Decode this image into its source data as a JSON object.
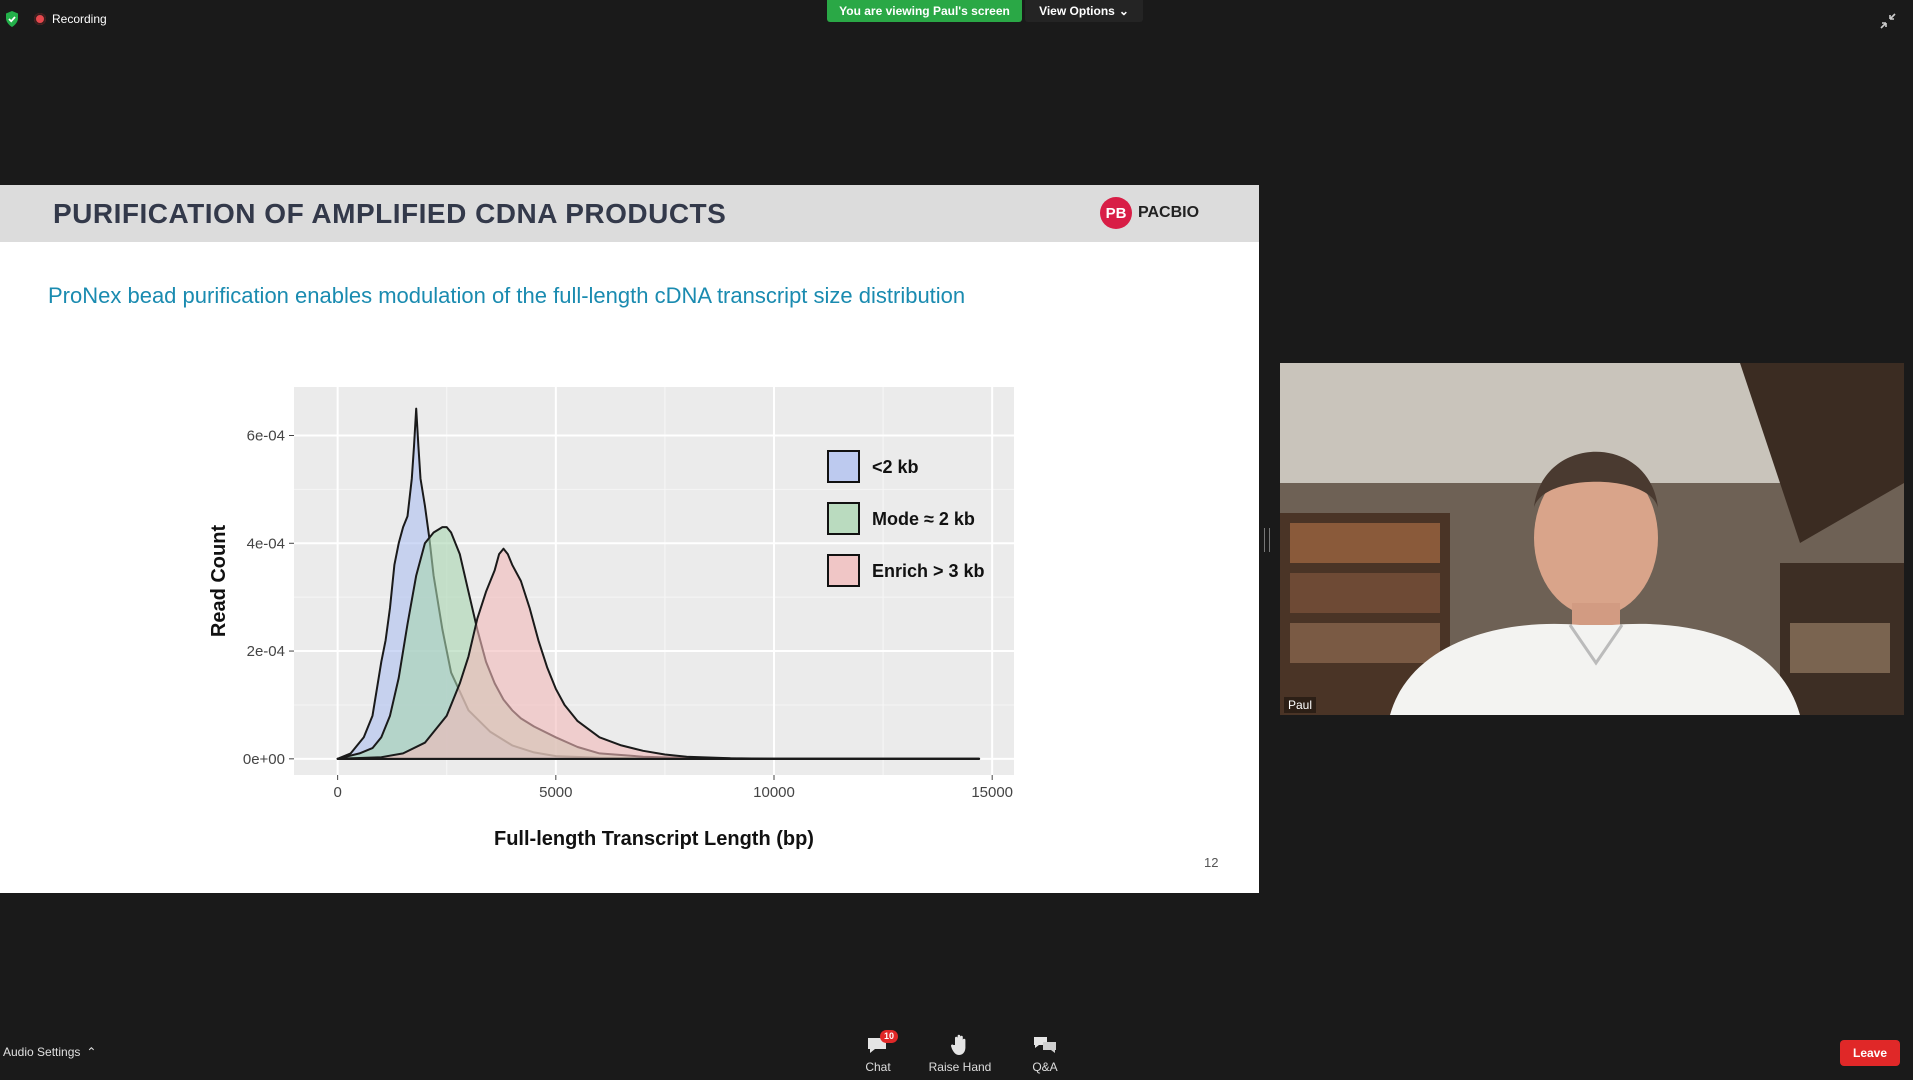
{
  "top": {
    "recording_label": "Recording",
    "viewing_label": "You are viewing Paul's screen",
    "view_options_label": "View Options"
  },
  "slide": {
    "title": "PURIFICATION OF AMPLIFIED CDNA PRODUCTS",
    "logo_text": "PACBIO",
    "logo_mark": "PB",
    "subtitle": "ProNex bead purification enables modulation of the full-length cDNA transcript size distribution",
    "page_number": "12"
  },
  "chart_data": {
    "type": "area",
    "xlabel": "Full-length Transcript Length (bp)",
    "ylabel": "Read Count",
    "xlim": [
      -1000,
      15500
    ],
    "ylim": [
      -3e-05,
      0.00069
    ],
    "x_ticks": [
      0,
      5000,
      10000,
      15000
    ],
    "x_tick_labels": [
      "0",
      "5000",
      "10000",
      "15000"
    ],
    "y_ticks": [
      0,
      0.0002,
      0.0004,
      0.0006
    ],
    "y_tick_labels": [
      "0e+00",
      "2e-04",
      "4e-04",
      "6e-04"
    ],
    "grid": true,
    "legend_position": "top-right",
    "series": [
      {
        "name": "<2 kb",
        "color": "#aebff0",
        "x": [
          0,
          300,
          600,
          800,
          900,
          1000,
          1100,
          1200,
          1300,
          1400,
          1500,
          1600,
          1700,
          1750,
          1800,
          1850,
          1900,
          2000,
          2100,
          2200,
          2400,
          2600,
          3000,
          3500,
          4000,
          4500,
          5000,
          6000,
          8000,
          10000,
          14700
        ],
        "y": [
          0,
          1e-05,
          4e-05,
          8e-05,
          0.00013,
          0.00018,
          0.00022,
          0.00028,
          0.00036,
          0.0004,
          0.00043,
          0.00045,
          0.00052,
          0.00058,
          0.00065,
          0.00058,
          0.00052,
          0.00047,
          0.00041,
          0.00034,
          0.00024,
          0.00016,
          9e-05,
          5e-05,
          2.5e-05,
          1.2e-05,
          5e-06,
          2e-06,
          5e-07,
          0,
          0
        ]
      },
      {
        "name": "Mode ≈ 2 kb",
        "color": "#a9d6b0",
        "x": [
          0,
          500,
          800,
          1000,
          1200,
          1400,
          1600,
          1800,
          2000,
          2200,
          2400,
          2500,
          2600,
          2800,
          3000,
          3200,
          3400,
          3600,
          3800,
          4000,
          4200,
          4500,
          5000,
          5500,
          6000,
          7000,
          8000,
          10000,
          14700
        ],
        "y": [
          0,
          1e-05,
          2e-05,
          4e-05,
          8e-05,
          0.00015,
          0.00025,
          0.00034,
          0.0004,
          0.00042,
          0.00043,
          0.00043,
          0.00042,
          0.00038,
          0.00031,
          0.00024,
          0.00018,
          0.00014,
          0.00011,
          9e-05,
          7.5e-05,
          6e-05,
          4e-05,
          2.2e-05,
          1e-05,
          4e-06,
          1.5e-06,
          0,
          0
        ]
      },
      {
        "name": "Enrich > 3 kb",
        "color": "#f2b9b9",
        "x": [
          0,
          1000,
          1500,
          2000,
          2500,
          2800,
          3000,
          3200,
          3400,
          3600,
          3700,
          3800,
          3900,
          4000,
          4200,
          4400,
          4600,
          4800,
          5000,
          5200,
          5500,
          6000,
          6500,
          7000,
          7500,
          8000,
          9000,
          10000,
          11000,
          14700
        ],
        "y": [
          0,
          3e-06,
          1e-05,
          3e-05,
          8e-05,
          0.00014,
          0.00019,
          0.00026,
          0.00031,
          0.00035,
          0.00038,
          0.00039,
          0.00038,
          0.00036,
          0.00033,
          0.00028,
          0.00022,
          0.00017,
          0.00013,
          0.0001,
          7e-05,
          4e-05,
          2.5e-05,
          1.5e-05,
          8e-06,
          4e-06,
          1e-06,
          3e-07,
          0,
          0
        ]
      }
    ]
  },
  "presenter": {
    "name": "Paul"
  },
  "bottom": {
    "audio_label": "Audio Settings",
    "chat_label": "Chat",
    "chat_badge": "10",
    "raise_hand_label": "Raise Hand",
    "qa_label": "Q&A",
    "leave_label": "Leave"
  }
}
